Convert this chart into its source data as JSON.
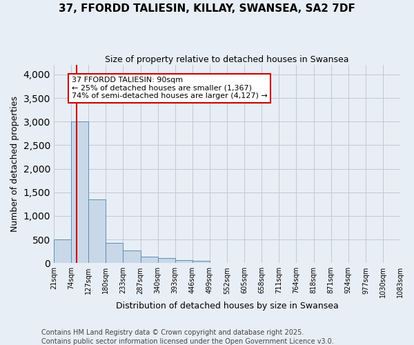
{
  "title": "37, FFORDD TALIESIN, KILLAY, SWANSEA, SA2 7DF",
  "subtitle": "Size of property relative to detached houses in Swansea",
  "xlabel": "Distribution of detached houses by size in Swansea",
  "ylabel": "Number of detached properties",
  "bin_edges": [
    21,
    74,
    127,
    180,
    233,
    287,
    340,
    393,
    446,
    499,
    552,
    605,
    658,
    711,
    764,
    818,
    871,
    924,
    977,
    1030,
    1083
  ],
  "bar_heights": [
    500,
    3000,
    1350,
    430,
    270,
    130,
    100,
    70,
    50,
    5,
    3,
    2,
    2,
    1,
    1,
    1,
    1,
    1,
    1,
    1
  ],
  "bar_color": "#c8d8e8",
  "bar_edgecolor": "#5b8db8",
  "background_color": "#e8eef5",
  "grid_color": "#c0c8d8",
  "vline_x": 90,
  "vline_color": "#cc0000",
  "annotation_text": "37 FFORDD TALIESIN: 90sqm\n← 25% of detached houses are smaller (1,367)\n74% of semi-detached houses are larger (4,127) →",
  "ylim": [
    0,
    4200
  ],
  "yticks": [
    0,
    500,
    1000,
    1500,
    2000,
    2500,
    3000,
    3500,
    4000
  ],
  "footnote1": "Contains HM Land Registry data © Crown copyright and database right 2025.",
  "footnote2": "Contains public sector information licensed under the Open Government Licence v3.0.",
  "title_fontsize": 11,
  "subtitle_fontsize": 9,
  "axis_label_fontsize": 9,
  "tick_fontsize": 7,
  "annotation_fontsize": 8,
  "footnote_fontsize": 7
}
